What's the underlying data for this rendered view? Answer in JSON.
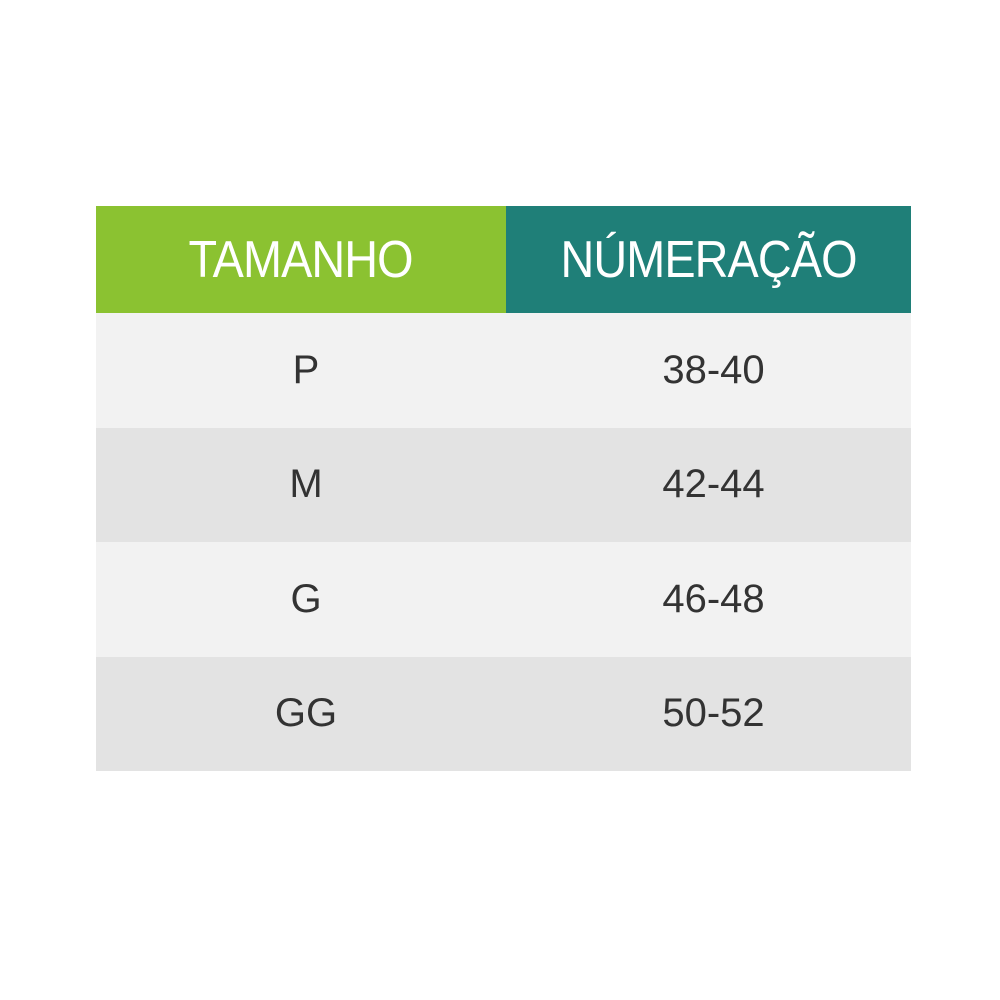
{
  "header": {
    "col1": "TAMANHO",
    "col2": "NÚMERAÇÃO"
  },
  "colors": {
    "header_left": "#8bc231",
    "header_right": "#1f7f78",
    "row_light": "#f2f2f2",
    "row_dark": "#e3e3e3",
    "text": "#333333"
  },
  "rows": [
    {
      "size": "P",
      "range": "38-40"
    },
    {
      "size": "M",
      "range": "42-44"
    },
    {
      "size": "G",
      "range": "46-48"
    },
    {
      "size": "GG",
      "range": "50-52"
    }
  ]
}
